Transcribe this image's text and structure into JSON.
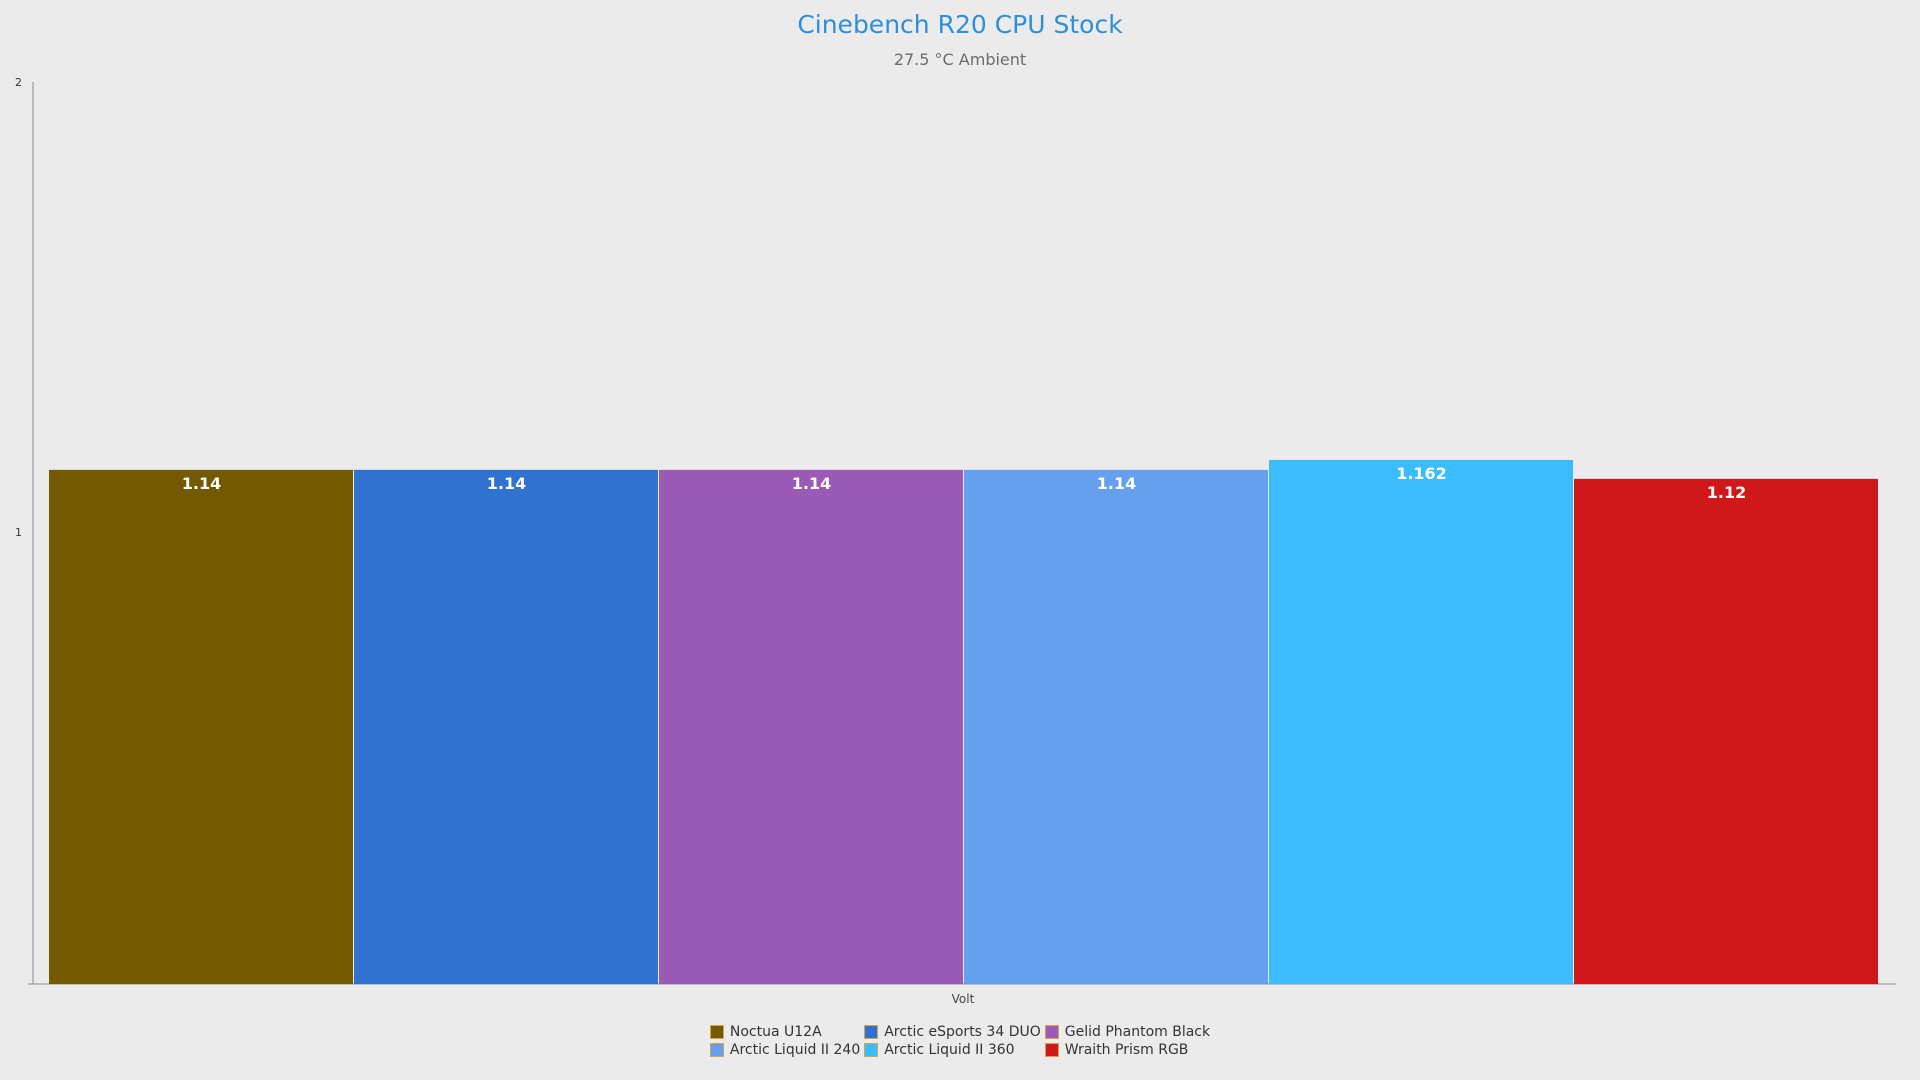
{
  "chart_data": {
    "type": "bar",
    "title": "Cinebench R20 CPU Stock",
    "subtitle": "27.5 °C Ambient",
    "xlabel": "Volt",
    "ylabel": "",
    "ylim": [
      0,
      2
    ],
    "yticks": [
      "1",
      "2"
    ],
    "grid": false,
    "legend_position": "bottom",
    "categories": [
      "Volt"
    ],
    "series": [
      {
        "name": "Noctua U12A",
        "values": [
          1.14
        ],
        "label": "1.14",
        "color": "#735a00"
      },
      {
        "name": "Arctic eSports 34 DUO",
        "values": [
          1.14
        ],
        "label": "1.14",
        "color": "#2f72cf"
      },
      {
        "name": "Gelid Phantom Black",
        "values": [
          1.14
        ],
        "label": "1.14",
        "color": "#9a5ab5"
      },
      {
        "name": "Arctic Liquid II 240",
        "values": [
          1.14
        ],
        "label": "1.14",
        "color": "#65a0ee"
      },
      {
        "name": "Arctic Liquid II 360",
        "values": [
          1.162
        ],
        "label": "1.162",
        "color": "#3bbcfe"
      },
      {
        "name": "Wraith Prism RGB",
        "values": [
          1.12
        ],
        "label": "1.12",
        "color": "#d0171a"
      }
    ]
  }
}
